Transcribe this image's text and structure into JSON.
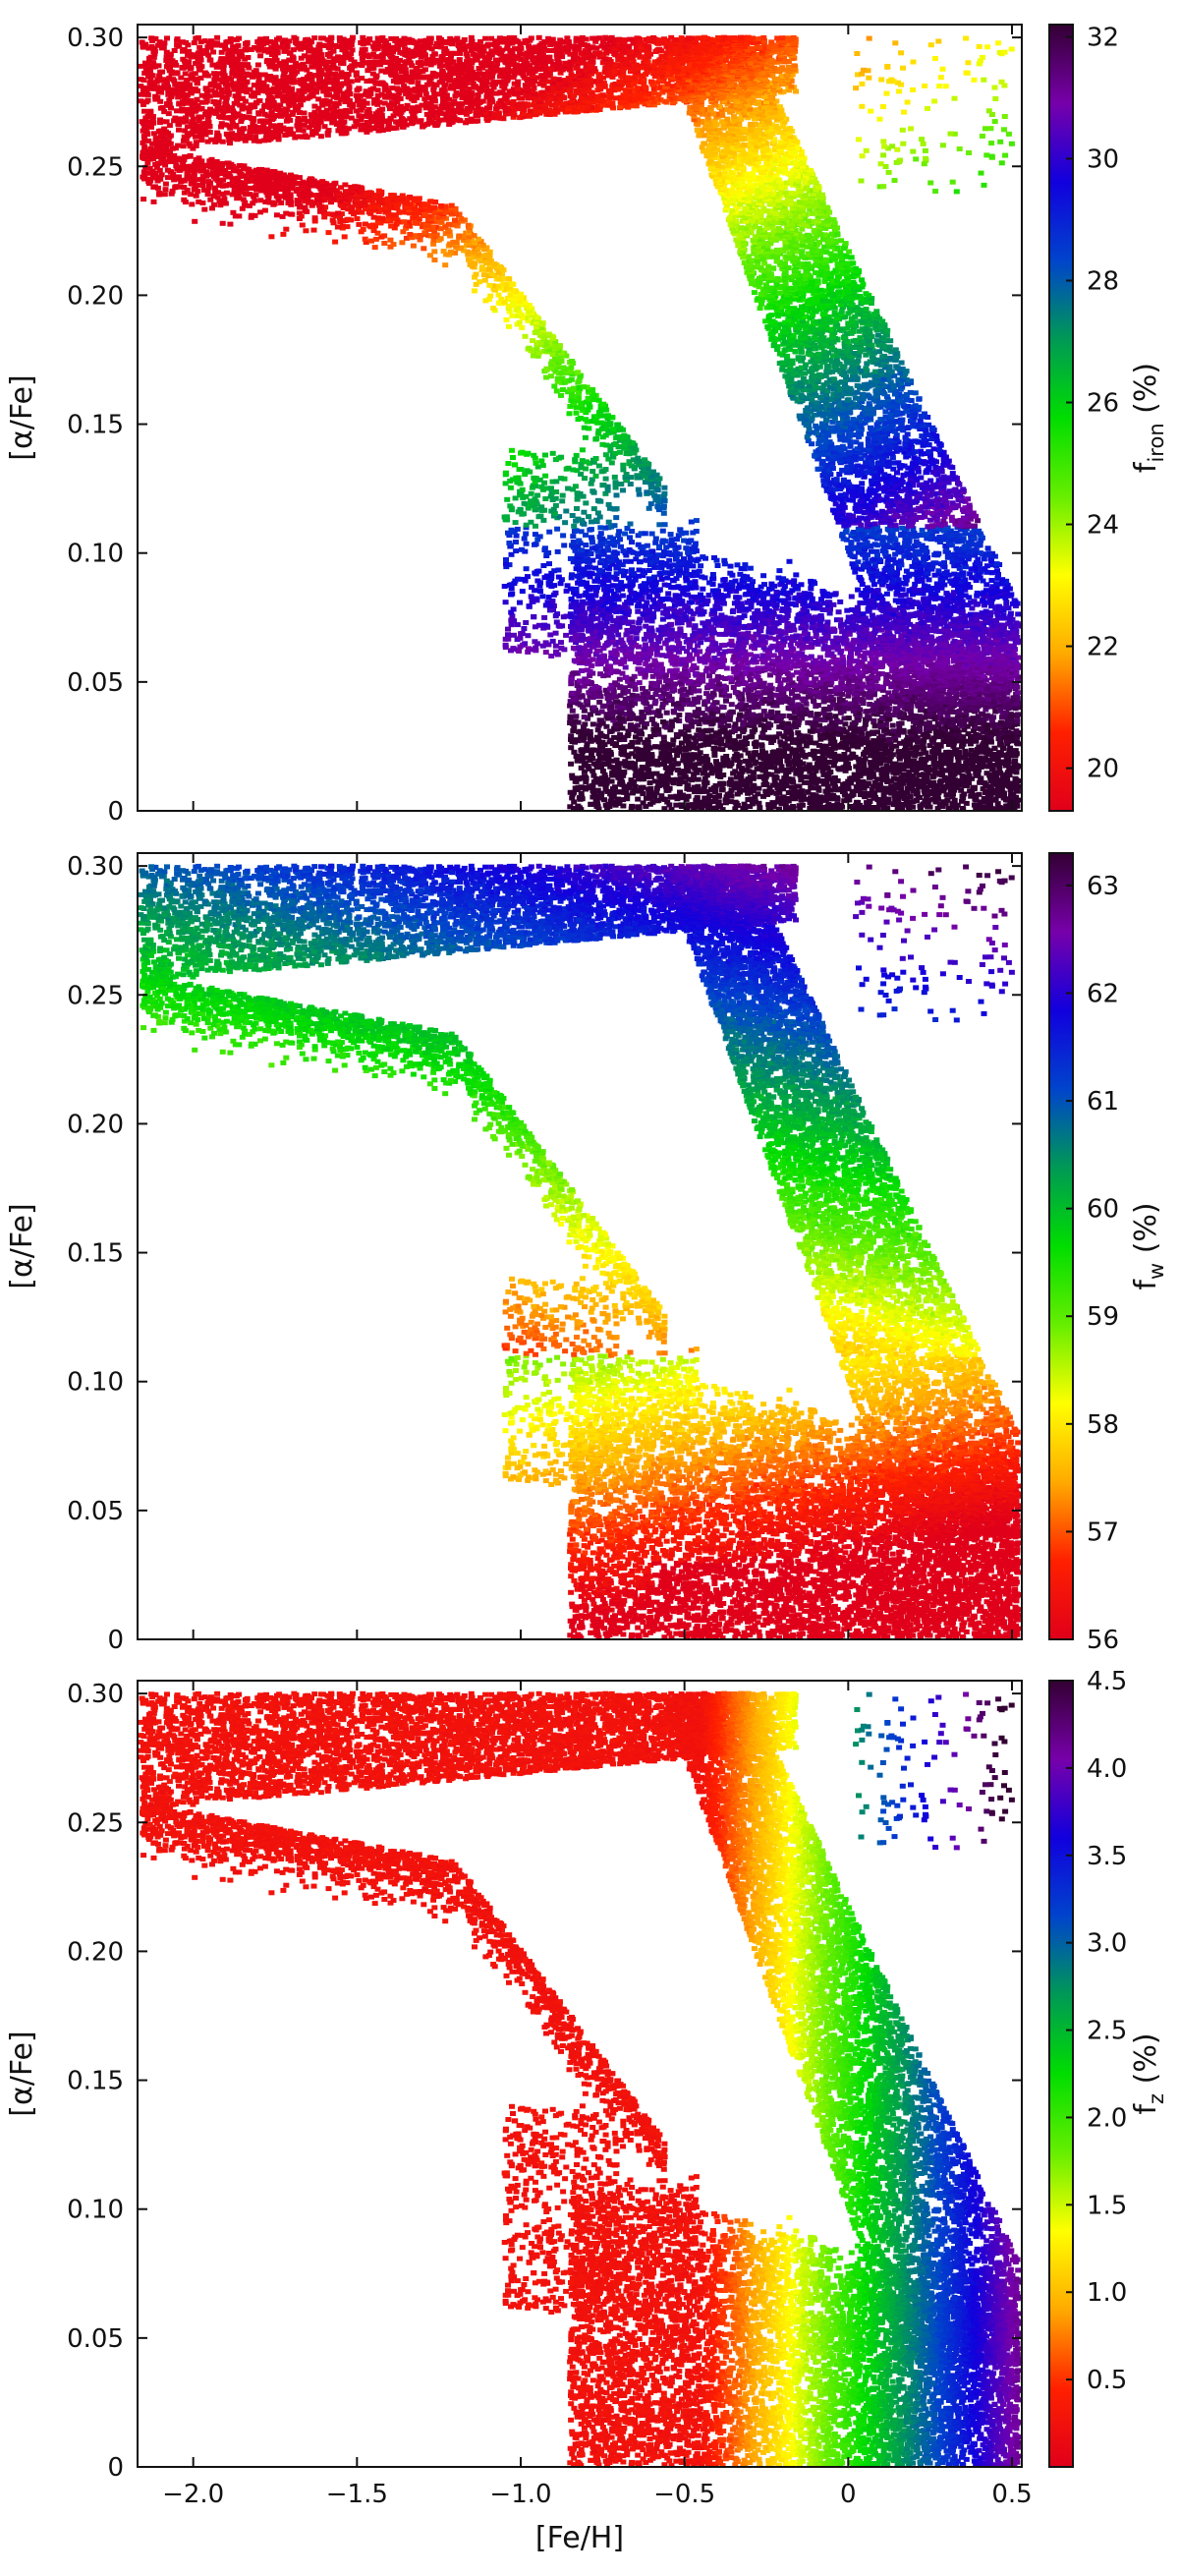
{
  "chart_data": [
    {
      "type": "scatter",
      "title": "",
      "xlabel": "",
      "ylabel": "[α/Fe]",
      "xlim": [
        -2.17,
        0.53
      ],
      "ylim": [
        0,
        0.305
      ],
      "xticks": [
        -2.0,
        -1.5,
        -1.0,
        -0.5,
        0,
        0.5
      ],
      "xtick_labels": [
        "",
        "",
        "",
        "",
        "",
        ""
      ],
      "yticks": [
        0,
        0.05,
        0.1,
        0.15,
        0.2,
        0.25,
        0.3
      ],
      "ytick_labels": [
        "0",
        "0.05",
        "0.10",
        "0.15",
        "0.20",
        "0.25",
        "0.30"
      ],
      "colorbar": {
        "label": "f",
        "label_sub": "iron",
        "label_suffix": "(%)",
        "range": [
          19.3,
          32.2
        ],
        "ticks": [
          20,
          22,
          24,
          26,
          28,
          30,
          32
        ],
        "tick_labels": [
          "20",
          "22",
          "24",
          "26",
          "28",
          "30",
          "32"
        ],
        "colors": [
          "#e0001a",
          "#ff2000",
          "#ffaa00",
          "#ffff00",
          "#66ee00",
          "#00dd00",
          "#009955",
          "#0044cc",
          "#1100dd",
          "#7700aa",
          "#330033"
        ]
      },
      "color_model": "iron",
      "point_colors_note": ""
    },
    {
      "type": "scatter",
      "title": "",
      "xlabel": "",
      "ylabel": "[α/Fe]",
      "xlim": [
        -2.17,
        0.53
      ],
      "ylim": [
        0,
        0.305
      ],
      "xticks": [
        -2.0,
        -1.5,
        -1.0,
        -0.5,
        0,
        0.5
      ],
      "xtick_labels": [
        "",
        "",
        "",
        "",
        "",
        ""
      ],
      "yticks": [
        0,
        0.05,
        0.1,
        0.15,
        0.2,
        0.25,
        0.3
      ],
      "ytick_labels": [
        "0",
        "0.05",
        "0.10",
        "0.15",
        "0.20",
        "0.25",
        "0.30"
      ],
      "colorbar": {
        "label": "f",
        "label_sub": "w",
        "label_suffix": "(%)",
        "range": [
          56,
          63.3
        ],
        "ticks": [
          56,
          57,
          58,
          59,
          60,
          61,
          62,
          63
        ],
        "tick_labels": [
          "56",
          "57",
          "58",
          "59",
          "60",
          "61",
          "62",
          "63"
        ],
        "colors": [
          "#e0001a",
          "#ff2000",
          "#ffaa00",
          "#ffff00",
          "#66ee00",
          "#00dd00",
          "#009955",
          "#0044cc",
          "#1100dd",
          "#7700aa",
          "#330033"
        ]
      },
      "color_model": "w"
    },
    {
      "type": "scatter",
      "title": "",
      "xlabel": "[Fe/H]",
      "ylabel": "[α/Fe]",
      "xlim": [
        -2.17,
        0.53
      ],
      "ylim": [
        0,
        0.305
      ],
      "xticks": [
        -2.0,
        -1.5,
        -1.0,
        -0.5,
        0,
        0.5
      ],
      "xtick_labels": [
        "−2.0",
        "−1.5",
        "−1.0",
        "−0.5",
        "0",
        "0.5"
      ],
      "yticks": [
        0,
        0.05,
        0.1,
        0.15,
        0.2,
        0.25,
        0.3
      ],
      "ytick_labels": [
        "0",
        "0.05",
        "0.10",
        "0.15",
        "0.20",
        "0.25",
        "0.30"
      ],
      "colorbar": {
        "label": "f",
        "label_sub": "z",
        "label_suffix": "(%)",
        "range": [
          0,
          4.5
        ],
        "ticks": [
          0.5,
          1.0,
          1.5,
          2.0,
          2.5,
          3.0,
          3.5,
          4.0,
          4.5
        ],
        "tick_labels": [
          "0.5",
          "1.0",
          "1.5",
          "2.0",
          "2.5",
          "3.0",
          "3.5",
          "4.0",
          "4.5"
        ],
        "colors": [
          "#e0001a",
          "#ff2000",
          "#ffaa00",
          "#ffff00",
          "#66ee00",
          "#00dd00",
          "#009955",
          "#0044cc",
          "#1100dd",
          "#7700aa",
          "#330033"
        ]
      },
      "color_model": "z"
    }
  ]
}
